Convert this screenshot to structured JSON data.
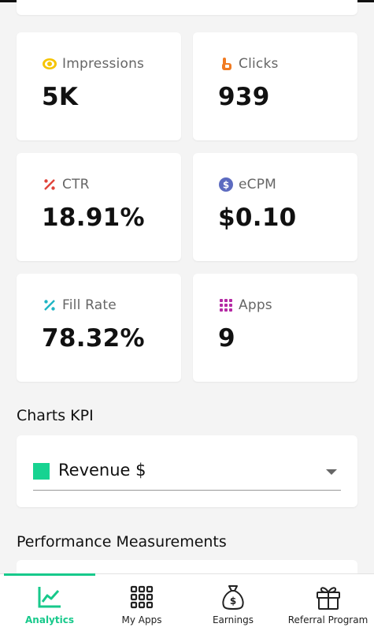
{
  "stats": [
    {
      "label": "Impressions",
      "value": "5K",
      "icon": "eye-icon",
      "color": "#f5c400"
    },
    {
      "label": "Clicks",
      "value": "939",
      "icon": "pointer-hand-icon",
      "color": "#f07b22"
    },
    {
      "label": "CTR",
      "value": "18.91%",
      "icon": "percent-icon",
      "color": "#e0443a"
    },
    {
      "label": "eCPM",
      "value": "$0.10",
      "icon": "dollar-circle-icon",
      "color": "#5c6bc0"
    },
    {
      "label": "Fill Rate",
      "value": "78.32%",
      "icon": "percent-icon",
      "color": "#1fb5c4"
    },
    {
      "label": "Apps",
      "value": "9",
      "icon": "grid-dots-icon",
      "color": "#b52aa4"
    }
  ],
  "charts_kpi": {
    "title": "Charts KPI",
    "selected": "Revenue $",
    "swatch_color": "#17d391"
  },
  "performance": {
    "title": "Performance Measurements"
  },
  "nav": {
    "active_color": "#17c98b",
    "items": [
      {
        "label": "Analytics",
        "icon": "line-chart-icon"
      },
      {
        "label": "My Apps",
        "icon": "grid-icon"
      },
      {
        "label": "Earnings",
        "icon": "money-bag-icon"
      },
      {
        "label": "Referral Program",
        "icon": "gift-icon"
      }
    ]
  }
}
